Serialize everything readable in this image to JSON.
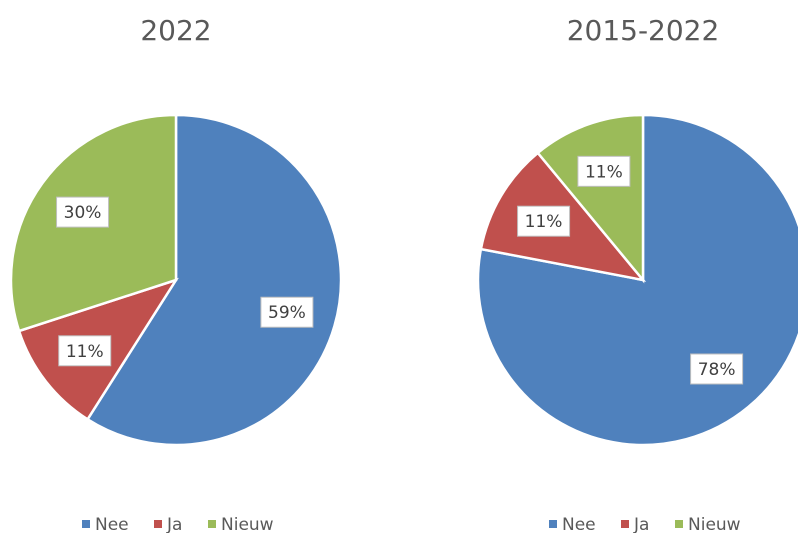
{
  "chart_data": [
    {
      "type": "pie",
      "title": "2022",
      "categories": [
        "Nee",
        "Ja",
        "Nieuw"
      ],
      "values": [
        59,
        11,
        30
      ],
      "value_labels": [
        "59%",
        "11%",
        "30%"
      ],
      "colors": [
        "#4f81bd",
        "#c0504d",
        "#9bbb59"
      ]
    },
    {
      "type": "pie",
      "title": "2015-2022",
      "categories": [
        "Nee",
        "Ja",
        "Nieuw"
      ],
      "values": [
        78,
        11,
        11
      ],
      "value_labels": [
        "78%",
        "11%",
        "11%"
      ],
      "colors": [
        "#4f81bd",
        "#c0504d",
        "#9bbb59"
      ]
    }
  ]
}
